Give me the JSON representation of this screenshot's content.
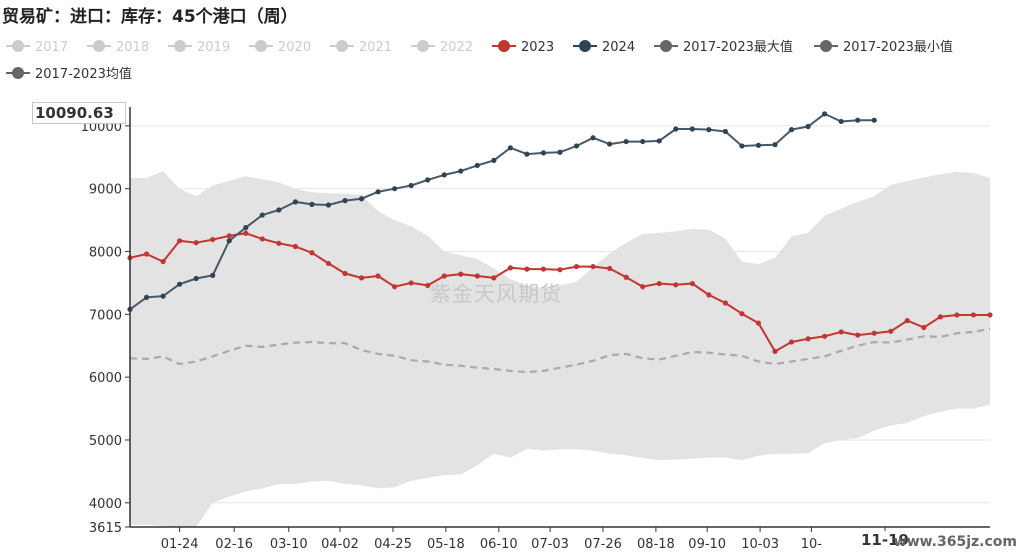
{
  "title": "贸易矿：进口：库存：45个港口（周）",
  "watermark": "紫金天风期货",
  "site_text": "www.365jz.com",
  "cursor": {
    "y_label": "10090.63",
    "x_label": "11-19"
  },
  "colors": {
    "band": "#e3e3e3",
    "s2023": "#c23531",
    "s2024": "#4a5866",
    "avg": "#aaaaaa",
    "inactive": "#cccccc",
    "legend_dark": "#666666",
    "s2024_dot": "#2f4554"
  },
  "legend": [
    {
      "label": "2017",
      "active": false,
      "color": "#cccccc"
    },
    {
      "label": "2018",
      "active": false,
      "color": "#cccccc"
    },
    {
      "label": "2019",
      "active": false,
      "color": "#cccccc"
    },
    {
      "label": "2020",
      "active": false,
      "color": "#cccccc"
    },
    {
      "label": "2021",
      "active": false,
      "color": "#cccccc"
    },
    {
      "label": "2022",
      "active": false,
      "color": "#cccccc"
    },
    {
      "label": "2023",
      "active": true,
      "color": "#c23531"
    },
    {
      "label": "2024",
      "active": true,
      "color": "#2f4554"
    },
    {
      "label": "2017-2023最大值",
      "active": true,
      "color": "#666666"
    },
    {
      "label": "2017-2023最小值",
      "active": true,
      "color": "#666666"
    },
    {
      "label": "2017-2023均值",
      "active": true,
      "color": "#666666"
    }
  ],
  "chart_data": {
    "type": "line",
    "title": "贸易矿：进口：库存：45个港口（周）",
    "xlabel": "",
    "ylabel": "",
    "ylim": [
      3615,
      10300
    ],
    "xlim": [
      1,
      53
    ],
    "y_ticks": [
      3615,
      4000,
      5000,
      6000,
      7000,
      8000,
      9000,
      10000
    ],
    "x_ticks": [
      {
        "x": 4,
        "label": "01-24"
      },
      {
        "x": 7.3,
        "label": "02-16"
      },
      {
        "x": 10.6,
        "label": "03-10"
      },
      {
        "x": 13.7,
        "label": "04-02"
      },
      {
        "x": 16.9,
        "label": "04-25"
      },
      {
        "x": 20.1,
        "label": "05-18"
      },
      {
        "x": 23.3,
        "label": "06-10"
      },
      {
        "x": 26.4,
        "label": "07-03"
      },
      {
        "x": 29.6,
        "label": "07-26"
      },
      {
        "x": 32.8,
        "label": "08-18"
      },
      {
        "x": 35.9,
        "label": "09-10"
      },
      {
        "x": 39.1,
        "label": "10-03"
      },
      {
        "x": 42.2,
        "label": "10-"
      }
    ],
    "grid": true,
    "legend_position": "top",
    "band": {
      "name": "2017-2023最大值 / 2017-2023最小值",
      "x": [
        1,
        2,
        3,
        4,
        5,
        6,
        7,
        8,
        9,
        10,
        11,
        12,
        13,
        14,
        15,
        16,
        17,
        18,
        19,
        20,
        21,
        22,
        23,
        24,
        25,
        26,
        27,
        28,
        29,
        30,
        31,
        32,
        33,
        34,
        35,
        36,
        37,
        38,
        39,
        40,
        41,
        42,
        43,
        44,
        45,
        46,
        47,
        48,
        49,
        50,
        51,
        52,
        53
      ],
      "max": [
        9170,
        9170,
        9280,
        9000,
        8880,
        9050,
        9120,
        9200,
        9150,
        9100,
        9000,
        8940,
        8930,
        8920,
        8900,
        8640,
        8500,
        8400,
        8250,
        8000,
        7940,
        7880,
        7730,
        7560,
        7460,
        7420,
        7460,
        7520,
        7750,
        7970,
        8140,
        8280,
        8300,
        8320,
        8360,
        8350,
        8200,
        7840,
        7800,
        7900,
        8240,
        8300,
        8570,
        8680,
        8790,
        8880,
        9060,
        9120,
        9180,
        9230,
        9270,
        9250,
        9170
      ],
      "min": [
        3650,
        3650,
        3630,
        3615,
        3615,
        4000,
        4100,
        4180,
        4230,
        4300,
        4300,
        4340,
        4350,
        4300,
        4280,
        4230,
        4250,
        4350,
        4400,
        4440,
        4450,
        4600,
        4780,
        4720,
        4860,
        4830,
        4850,
        4850,
        4830,
        4780,
        4760,
        4710,
        4680,
        4690,
        4700,
        4720,
        4720,
        4680,
        4750,
        4780,
        4780,
        4790,
        4950,
        5000,
        5030,
        5150,
        5230,
        5270,
        5380,
        5450,
        5500,
        5500,
        5560
      ]
    },
    "series": [
      {
        "name": "2017-2023均值",
        "x": [
          1,
          2,
          3,
          4,
          5,
          6,
          7,
          8,
          9,
          10,
          11,
          12,
          13,
          14,
          15,
          16,
          17,
          18,
          19,
          20,
          21,
          22,
          23,
          24,
          25,
          26,
          27,
          28,
          29,
          30,
          31,
          32,
          33,
          34,
          35,
          36,
          37,
          38,
          39,
          40,
          41,
          42,
          43,
          44,
          45,
          46,
          47,
          48,
          49,
          50,
          51,
          52,
          53
        ],
        "values": [
          6300,
          6290,
          6330,
          6210,
          6250,
          6330,
          6420,
          6500,
          6480,
          6520,
          6550,
          6560,
          6540,
          6540,
          6430,
          6370,
          6340,
          6270,
          6250,
          6200,
          6180,
          6150,
          6130,
          6100,
          6080,
          6100,
          6150,
          6200,
          6260,
          6350,
          6370,
          6300,
          6280,
          6340,
          6400,
          6390,
          6360,
          6340,
          6250,
          6210,
          6250,
          6290,
          6330,
          6420,
          6500,
          6560,
          6550,
          6600,
          6650,
          6640,
          6700,
          6720,
          6770
        ]
      },
      {
        "name": "2023",
        "x": [
          1,
          2,
          3,
          4,
          5,
          6,
          7,
          8,
          9,
          10,
          11,
          12,
          13,
          14,
          15,
          16,
          17,
          18,
          19,
          20,
          21,
          22,
          23,
          24,
          25,
          26,
          27,
          28,
          29,
          30,
          31,
          32,
          33,
          34,
          35,
          36,
          37,
          38,
          39,
          40,
          41,
          42,
          43,
          44,
          45,
          46,
          47,
          48,
          49,
          50,
          51,
          52,
          53
        ],
        "values": [
          7900,
          7960,
          7840,
          8170,
          8140,
          8190,
          8250,
          8290,
          8200,
          8130,
          8080,
          7980,
          7810,
          7650,
          7580,
          7610,
          7440,
          7500,
          7460,
          7610,
          7640,
          7610,
          7580,
          7740,
          7720,
          7720,
          7710,
          7760,
          7760,
          7730,
          7590,
          7440,
          7490,
          7470,
          7490,
          7310,
          7180,
          7010,
          6860,
          6410,
          6560,
          6610,
          6650,
          6720,
          6670,
          6700,
          6730,
          6900,
          6790,
          6960,
          6990,
          6990,
          6990
        ]
      },
      {
        "name": "2024",
        "x": [
          1,
          2,
          3,
          4,
          5,
          6,
          7,
          8,
          9,
          10,
          11,
          12,
          13,
          14,
          15,
          16,
          17,
          18,
          19,
          20,
          21,
          22,
          23,
          24,
          25,
          26,
          27,
          28,
          29,
          30,
          31,
          32,
          33,
          34,
          35,
          36,
          37,
          38,
          39,
          40,
          41,
          42,
          43,
          44,
          45,
          46
        ],
        "values": [
          7080,
          7270,
          7290,
          7480,
          7570,
          7620,
          8170,
          8380,
          8580,
          8660,
          8790,
          8750,
          8740,
          8810,
          8840,
          8950,
          9000,
          9050,
          9140,
          9220,
          9280,
          9370,
          9450,
          9650,
          9550,
          9570,
          9580,
          9680,
          9810,
          9710,
          9750,
          9750,
          9760,
          9950,
          9950,
          9940,
          9910,
          9680,
          9690,
          9700,
          9940,
          9990,
          10190,
          10070,
          10090,
          10090
        ]
      }
    ]
  }
}
